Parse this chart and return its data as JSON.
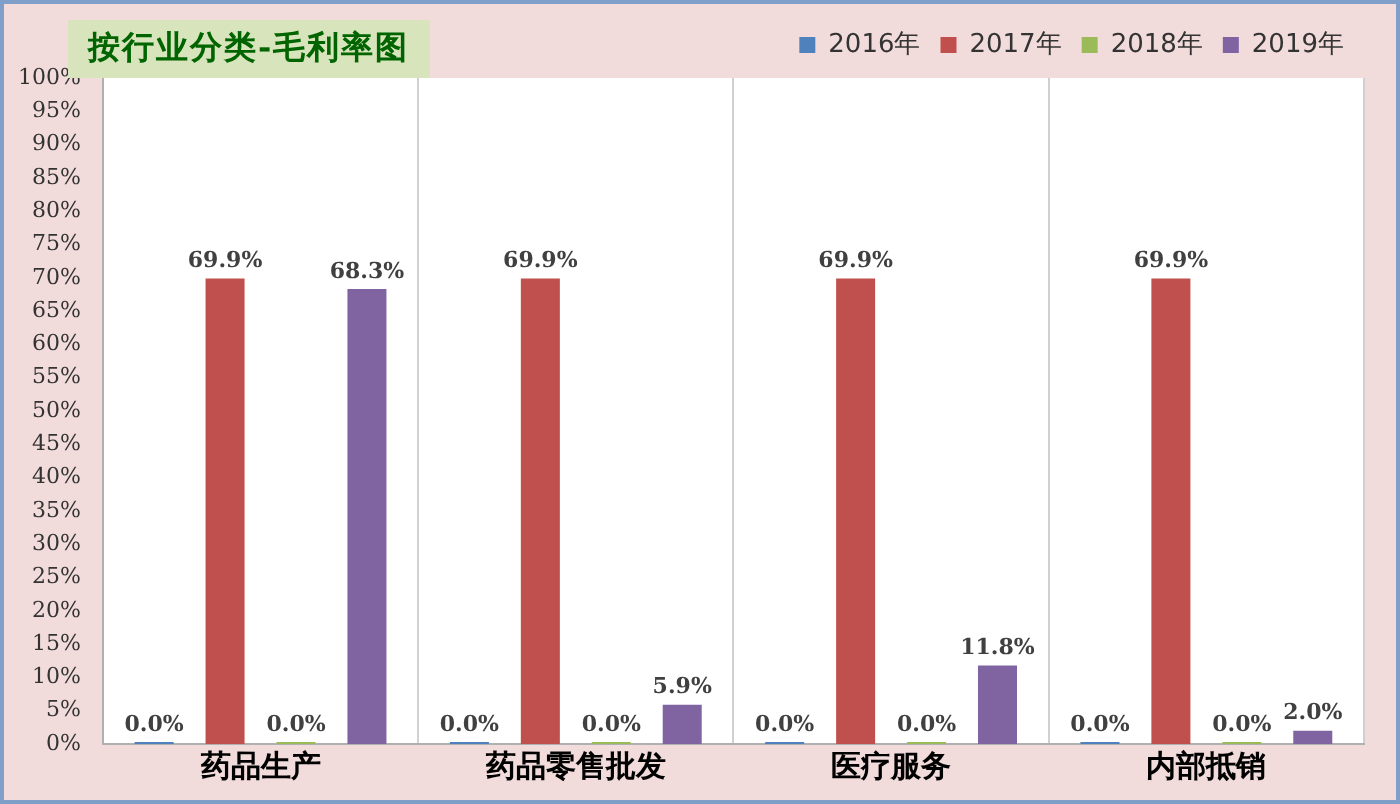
{
  "chart_data": {
    "type": "bar",
    "title": "按行业分类-毛利率图",
    "categories": [
      "药品生产",
      "药品零售批发",
      "医疗服务",
      "内部抵销"
    ],
    "series": [
      {
        "name": "2016年",
        "color": "#4f81bd",
        "values": [
          0,
          0,
          0,
          0
        ],
        "value_labels": [
          "0.0%",
          "0.0%",
          "0.0%",
          "0.0%"
        ]
      },
      {
        "name": "2017年",
        "color": "#c0504d",
        "values": [
          69.9,
          69.9,
          69.9,
          69.9
        ],
        "value_labels": [
          "69.9%",
          "69.9%",
          "69.9%",
          "69.9%"
        ]
      },
      {
        "name": "2018年",
        "color": "#9bbb59",
        "values": [
          0,
          0,
          0,
          0
        ],
        "value_labels": [
          "0.0%",
          "0.0%",
          "0.0%",
          "0.0%"
        ]
      },
      {
        "name": "2019年",
        "color": "#8064a2",
        "values": [
          68.3,
          5.9,
          11.8,
          2.0
        ],
        "value_labels": [
          "68.3%",
          "5.9%",
          "11.8%",
          "2.0%"
        ]
      }
    ],
    "ylim": [
      0,
      100
    ],
    "yticks": [
      {
        "value": 0,
        "label": "0%"
      },
      {
        "value": 5,
        "label": "5%"
      },
      {
        "value": 10,
        "label": "10%"
      },
      {
        "value": 15,
        "label": "15%"
      },
      {
        "value": 20,
        "label": "20%"
      },
      {
        "value": 25,
        "label": "25%"
      },
      {
        "value": 30,
        "label": "30%"
      },
      {
        "value": 35,
        "label": "35%"
      },
      {
        "value": 40,
        "label": "40%"
      },
      {
        "value": 45,
        "label": "45%"
      },
      {
        "value": 50,
        "label": "50%"
      },
      {
        "value": 55,
        "label": "55%"
      },
      {
        "value": 60,
        "label": "60%"
      },
      {
        "value": 65,
        "label": "65%"
      },
      {
        "value": 70,
        "label": "70%"
      },
      {
        "value": 75,
        "label": "75%"
      },
      {
        "value": 80,
        "label": "80%"
      },
      {
        "value": 85,
        "label": "85%"
      },
      {
        "value": 90,
        "label": "90%"
      },
      {
        "value": 95,
        "label": "95%"
      },
      {
        "value": 100,
        "label": "100%"
      }
    ],
    "grid": "x",
    "legend": "top right"
  }
}
